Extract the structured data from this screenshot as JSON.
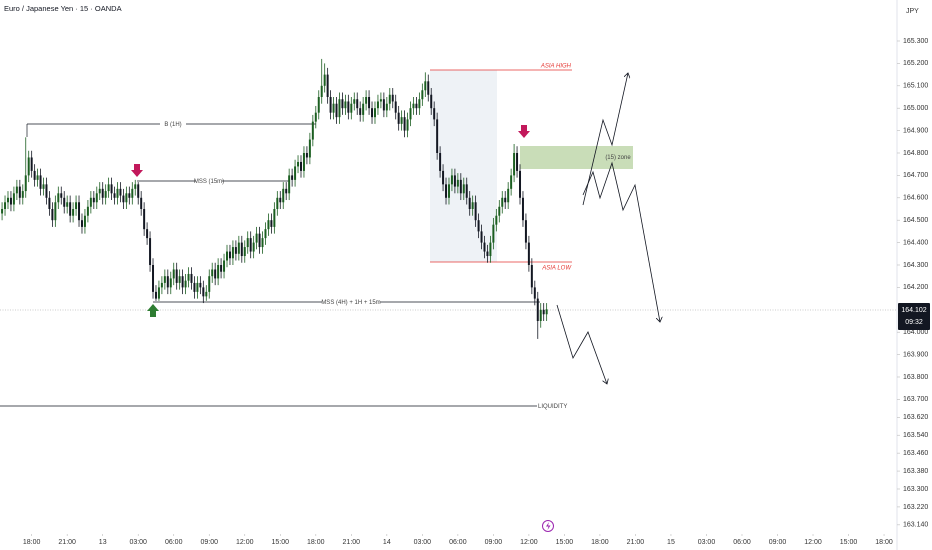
{
  "chart_data": {
    "type": "candlestick",
    "title": "Euro / Japanese Yen · 15 · OANDA",
    "unit": "JPY",
    "countdown": "09:32",
    "up_color": "#1b5e20",
    "down_color": "#131722",
    "open": [
      164.53,
      164.55,
      164.58,
      164.6,
      164.57,
      164.62,
      164.65,
      164.6,
      164.63,
      164.7,
      164.78,
      164.72,
      164.68,
      164.7,
      164.64,
      164.66,
      164.6,
      164.55,
      164.5,
      164.58,
      164.62,
      164.6,
      164.56,
      164.58,
      164.52,
      164.55,
      164.58,
      164.5,
      164.47,
      164.52,
      164.56,
      164.6,
      164.58,
      164.62,
      164.64,
      164.6,
      164.63,
      164.66,
      164.62,
      164.6,
      164.64,
      164.61,
      164.58,
      164.62,
      164.6,
      164.64,
      164.66,
      164.6,
      164.55,
      164.46,
      164.42,
      164.3,
      164.18,
      164.15,
      164.2,
      164.22,
      164.25,
      164.2,
      164.24,
      164.28,
      164.22,
      164.25,
      164.2,
      164.23,
      164.26,
      164.22,
      164.18,
      164.22,
      164.2,
      164.16,
      164.18,
      164.25,
      164.28,
      164.24,
      164.3,
      164.27,
      164.32,
      164.36,
      164.33,
      164.38,
      164.35,
      164.4,
      164.34,
      164.38,
      164.42,
      164.36,
      164.4,
      164.44,
      164.38,
      164.42,
      164.46,
      164.5,
      164.47,
      164.55,
      164.6,
      164.58,
      164.64,
      164.62,
      164.7,
      164.68,
      164.74,
      164.76,
      164.72,
      164.8,
      164.78,
      164.86,
      164.94,
      164.98,
      165.05,
      165.1,
      165.15,
      165.05,
      164.98,
      165.02,
      164.96,
      165.04,
      165.0,
      165.03,
      164.98,
      165.02,
      165.04,
      165.0,
      164.97,
      165.02,
      165.05,
      165.0,
      164.96,
      165.0,
      165.03,
      165.04,
      164.99,
      165.02,
      165.06,
      165.03,
      164.98,
      164.93,
      164.96,
      164.9,
      164.95,
      165.0,
      165.02,
      165.0,
      165.04,
      165.08,
      165.12,
      165.06,
      165.0,
      164.95,
      164.8,
      164.72,
      164.66,
      164.6,
      164.66,
      164.7,
      164.65,
      164.68,
      164.62,
      164.66,
      164.6,
      164.55,
      164.58,
      164.5,
      164.45,
      164.4,
      164.36,
      164.34,
      164.4,
      164.48,
      164.52,
      164.56,
      164.6,
      164.58,
      164.64,
      164.7,
      164.8,
      164.72,
      164.6,
      164.5,
      164.4,
      164.3,
      164.2,
      164.15,
      164.05,
      164.1,
      164.08
    ],
    "high": [
      164.58,
      164.61,
      164.63,
      164.63,
      164.65,
      164.68,
      164.68,
      164.66,
      164.87,
      164.81,
      164.81,
      164.75,
      164.73,
      164.73,
      164.69,
      164.69,
      164.63,
      164.58,
      164.61,
      164.65,
      164.65,
      164.63,
      164.61,
      164.61,
      164.58,
      164.61,
      164.61,
      164.53,
      164.55,
      164.59,
      164.63,
      164.63,
      164.65,
      164.67,
      164.67,
      164.66,
      164.69,
      164.69,
      164.65,
      164.67,
      164.67,
      164.64,
      164.65,
      164.65,
      164.67,
      164.68,
      164.67,
      164.63,
      164.58,
      164.49,
      164.45,
      164.33,
      164.21,
      164.23,
      164.25,
      164.28,
      164.28,
      164.27,
      164.31,
      164.31,
      164.28,
      164.28,
      164.26,
      164.29,
      164.29,
      164.25,
      164.25,
      164.25,
      164.23,
      164.21,
      164.28,
      164.31,
      164.31,
      164.33,
      164.33,
      164.35,
      164.39,
      164.39,
      164.41,
      164.41,
      164.43,
      164.43,
      164.41,
      164.45,
      164.45,
      164.43,
      164.47,
      164.47,
      164.45,
      164.49,
      164.53,
      164.53,
      164.58,
      164.63,
      164.63,
      164.67,
      164.67,
      164.73,
      164.73,
      164.77,
      164.79,
      164.79,
      164.83,
      164.83,
      164.89,
      164.97,
      165.01,
      165.08,
      165.22,
      165.2,
      165.18,
      165.08,
      165.05,
      165.05,
      165.07,
      165.07,
      165.06,
      165.06,
      165.05,
      165.07,
      165.07,
      165.03,
      165.05,
      165.08,
      165.08,
      165.03,
      165.03,
      165.06,
      165.07,
      165.07,
      165.05,
      165.09,
      165.09,
      165.06,
      165.01,
      164.99,
      164.99,
      164.98,
      165.03,
      165.05,
      165.05,
      165.07,
      165.11,
      165.16,
      165.15,
      165.09,
      165.03,
      164.98,
      164.83,
      164.75,
      164.69,
      164.69,
      164.73,
      164.73,
      164.71,
      164.71,
      164.69,
      164.69,
      164.63,
      164.61,
      164.61,
      164.53,
      164.48,
      164.43,
      164.39,
      164.43,
      164.51,
      164.55,
      164.59,
      164.63,
      164.63,
      164.67,
      164.73,
      164.84,
      164.83,
      164.75,
      164.63,
      164.53,
      164.43,
      164.33,
      164.23,
      164.18,
      164.13,
      164.13,
      164.13
    ],
    "low": [
      164.5,
      164.52,
      164.55,
      164.54,
      164.54,
      164.59,
      164.57,
      164.57,
      164.6,
      164.67,
      164.69,
      164.65,
      164.65,
      164.61,
      164.61,
      164.57,
      164.52,
      164.47,
      164.47,
      164.55,
      164.57,
      164.53,
      164.53,
      164.49,
      164.49,
      164.52,
      164.47,
      164.44,
      164.44,
      164.49,
      164.53,
      164.55,
      164.55,
      164.59,
      164.57,
      164.57,
      164.6,
      164.59,
      164.57,
      164.57,
      164.58,
      164.55,
      164.55,
      164.57,
      164.57,
      164.61,
      164.57,
      164.52,
      164.43,
      164.39,
      164.27,
      164.15,
      164.14,
      164.14,
      164.17,
      164.19,
      164.17,
      164.17,
      164.21,
      164.19,
      164.19,
      164.17,
      164.17,
      164.2,
      164.19,
      164.15,
      164.15,
      164.17,
      164.13,
      164.14,
      164.15,
      164.22,
      164.21,
      164.21,
      164.24,
      164.24,
      164.29,
      164.3,
      164.3,
      164.32,
      164.32,
      164.31,
      164.31,
      164.35,
      164.33,
      164.33,
      164.37,
      164.35,
      164.35,
      164.39,
      164.43,
      164.44,
      164.44,
      164.52,
      164.55,
      164.55,
      164.59,
      164.59,
      164.65,
      164.65,
      164.71,
      164.69,
      164.69,
      164.75,
      164.75,
      164.83,
      164.91,
      164.95,
      165.02,
      165.07,
      165.02,
      164.95,
      164.95,
      164.93,
      164.93,
      164.97,
      164.97,
      164.95,
      164.95,
      164.99,
      164.97,
      164.94,
      164.94,
      164.99,
      164.97,
      164.93,
      164.93,
      164.97,
      165.0,
      164.96,
      164.96,
      164.99,
      165.0,
      164.95,
      164.9,
      164.9,
      164.87,
      164.87,
      164.92,
      164.97,
      164.97,
      164.97,
      165.01,
      165.05,
      165.03,
      164.97,
      164.92,
      164.77,
      164.69,
      164.63,
      164.57,
      164.57,
      164.63,
      164.62,
      164.62,
      164.59,
      164.59,
      164.57,
      164.52,
      164.52,
      164.47,
      164.42,
      164.37,
      164.33,
      164.31,
      164.31,
      164.37,
      164.45,
      164.49,
      164.53,
      164.55,
      164.55,
      164.61,
      164.67,
      164.69,
      164.57,
      164.47,
      164.37,
      164.27,
      164.17,
      164.12,
      163.97,
      164.02,
      164.05,
      164.05
    ],
    "close": [
      164.55,
      164.58,
      164.6,
      164.57,
      164.62,
      164.65,
      164.6,
      164.63,
      164.7,
      164.78,
      164.72,
      164.68,
      164.7,
      164.64,
      164.66,
      164.6,
      164.55,
      164.5,
      164.58,
      164.62,
      164.6,
      164.56,
      164.58,
      164.52,
      164.55,
      164.58,
      164.5,
      164.47,
      164.52,
      164.56,
      164.6,
      164.58,
      164.62,
      164.64,
      164.6,
      164.63,
      164.66,
      164.62,
      164.6,
      164.64,
      164.61,
      164.58,
      164.62,
      164.6,
      164.64,
      164.66,
      164.6,
      164.55,
      164.46,
      164.42,
      164.3,
      164.18,
      164.15,
      164.2,
      164.22,
      164.25,
      164.2,
      164.24,
      164.28,
      164.22,
      164.25,
      164.2,
      164.23,
      164.26,
      164.22,
      164.18,
      164.22,
      164.2,
      164.16,
      164.18,
      164.25,
      164.28,
      164.24,
      164.3,
      164.27,
      164.32,
      164.36,
      164.33,
      164.38,
      164.35,
      164.4,
      164.34,
      164.38,
      164.42,
      164.36,
      164.4,
      164.44,
      164.38,
      164.42,
      164.46,
      164.5,
      164.47,
      164.55,
      164.6,
      164.58,
      164.64,
      164.62,
      164.7,
      164.68,
      164.74,
      164.76,
      164.72,
      164.8,
      164.78,
      164.86,
      164.94,
      164.98,
      165.05,
      165.1,
      165.15,
      165.05,
      164.98,
      165.02,
      164.96,
      165.04,
      165.0,
      165.03,
      164.98,
      165.02,
      165.04,
      165.0,
      164.97,
      165.02,
      165.05,
      165.0,
      164.96,
      165.0,
      165.03,
      165.04,
      164.99,
      165.02,
      165.06,
      165.03,
      164.98,
      164.93,
      164.96,
      164.9,
      164.95,
      165.0,
      165.02,
      165.0,
      165.04,
      165.08,
      165.12,
      165.06,
      165.0,
      164.95,
      164.8,
      164.72,
      164.66,
      164.6,
      164.66,
      164.7,
      164.65,
      164.68,
      164.62,
      164.66,
      164.6,
      164.55,
      164.58,
      164.5,
      164.45,
      164.4,
      164.36,
      164.34,
      164.4,
      164.48,
      164.52,
      164.56,
      164.6,
      164.58,
      164.64,
      164.7,
      164.8,
      164.72,
      164.6,
      164.5,
      164.4,
      164.3,
      164.2,
      164.15,
      164.05,
      164.1,
      164.08,
      164.102
    ],
    "xlim": [
      -0.7,
      301.7
    ],
    "xticks": [
      {
        "value": 10,
        "label": "18:00"
      },
      {
        "value": 22,
        "label": "21:00"
      },
      {
        "value": 34,
        "label": "13"
      },
      {
        "value": 46,
        "label": "03:00"
      },
      {
        "value": 58,
        "label": "06:00"
      },
      {
        "value": 70,
        "label": "09:00"
      },
      {
        "value": 82,
        "label": "12:00"
      },
      {
        "value": 94,
        "label": "15:00"
      },
      {
        "value": 106,
        "label": "18:00"
      },
      {
        "value": 118,
        "label": "21:00"
      },
      {
        "value": 130,
        "label": "14"
      },
      {
        "value": 142,
        "label": "03:00"
      },
      {
        "value": 154,
        "label": "06:00"
      },
      {
        "value": 166,
        "label": "09:00"
      },
      {
        "value": 178,
        "label": "12:00"
      },
      {
        "value": 190,
        "label": "15:00"
      },
      {
        "value": 202,
        "label": "18:00"
      },
      {
        "value": 214,
        "label": "21:00"
      },
      {
        "value": 226,
        "label": "15"
      },
      {
        "value": 238,
        "label": "03:00"
      },
      {
        "value": 250,
        "label": "06:00"
      },
      {
        "value": 262,
        "label": "09:00"
      },
      {
        "value": 274,
        "label": "12:00"
      },
      {
        "value": 286,
        "label": "15:00"
      },
      {
        "value": 298,
        "label": "18:00"
      }
    ],
    "ylim": [
      163.108,
      165.483
    ],
    "yticks": [
      {
        "value": 165.3,
        "label": "165.300"
      },
      {
        "value": 165.2,
        "label": "165.200"
      },
      {
        "value": 165.1,
        "label": "165.100"
      },
      {
        "value": 165.0,
        "label": "165.000"
      },
      {
        "value": 164.9,
        "label": "164.900"
      },
      {
        "value": 164.8,
        "label": "164.800"
      },
      {
        "value": 164.7,
        "label": "164.700"
      },
      {
        "value": 164.6,
        "label": "164.600"
      },
      {
        "value": 164.5,
        "label": "164.500"
      },
      {
        "value": 164.4,
        "label": "164.400"
      },
      {
        "value": 164.3,
        "label": "164.300"
      },
      {
        "value": 164.2,
        "label": "164.200"
      },
      {
        "value": 164.0,
        "label": "164.000"
      },
      {
        "value": 163.9,
        "label": "163.900"
      },
      {
        "value": 163.8,
        "label": "163.800"
      },
      {
        "value": 163.7,
        "label": "163.700"
      },
      {
        "value": 163.62,
        "label": "163.620"
      },
      {
        "value": 163.54,
        "label": "163.540"
      },
      {
        "value": 163.46,
        "label": "163.460"
      },
      {
        "value": 163.38,
        "label": "163.380"
      },
      {
        "value": 163.3,
        "label": "163.300"
      },
      {
        "value": 163.22,
        "label": "163.220"
      },
      {
        "value": 163.14,
        "label": "163.140"
      }
    ],
    "grid": false,
    "annotations": {
      "break_1h": "B (1H)",
      "mss_15m": "MSS (15m)",
      "mss_multi": "MSS (4H) + 1H + 15m",
      "asia_high": "ASIA HIGH",
      "asia_low": "ASIA LOW",
      "zone": "(15) zone",
      "liquidity": "LIQUIDITY"
    }
  }
}
